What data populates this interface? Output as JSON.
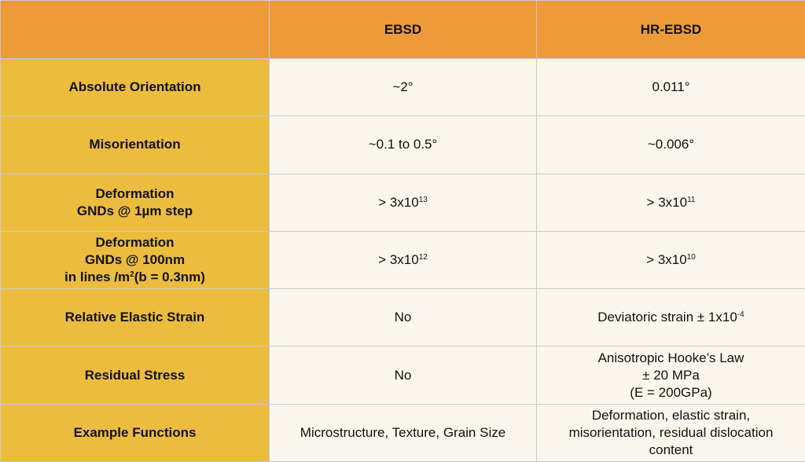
{
  "header": {
    "corner": "",
    "col1": "EBSD",
    "col2": "HR-EBSD"
  },
  "rows": [
    {
      "label_lines": [
        "Absolute Orientation"
      ],
      "ebsd": {
        "pre": "~2°",
        "sup": "",
        "post": ""
      },
      "hrebsd_lines": [
        {
          "pre": "0.011°",
          "sup": "",
          "post": ""
        }
      ]
    },
    {
      "label_lines": [
        "Misorientation"
      ],
      "ebsd": {
        "pre": "~0.1 to 0.5°",
        "sup": "",
        "post": ""
      },
      "hrebsd_lines": [
        {
          "pre": "~0.006°",
          "sup": "",
          "post": ""
        }
      ]
    },
    {
      "label_lines": [
        "Deformation",
        "GNDs @ 1µm step"
      ],
      "ebsd": {
        "pre": "> 3x10",
        "sup": "13",
        "post": ""
      },
      "hrebsd_lines": [
        {
          "pre": "> 3x10",
          "sup": "11",
          "post": ""
        }
      ]
    },
    {
      "label_lines": [
        "Deformation",
        "GNDs @ 100nm"
      ],
      "label_sup_line": {
        "pre": "in lines /m",
        "sup": "2",
        "post": "(b = 0.3nm)"
      },
      "ebsd": {
        "pre": "> 3x10",
        "sup": "12",
        "post": ""
      },
      "hrebsd_lines": [
        {
          "pre": "> 3x10",
          "sup": "10",
          "post": ""
        }
      ]
    },
    {
      "label_lines": [
        "Relative Elastic Strain"
      ],
      "ebsd": {
        "pre": "No",
        "sup": "",
        "post": ""
      },
      "hrebsd_lines": [
        {
          "pre": "Deviatoric strain ± 1x10",
          "sup": "-4",
          "post": ""
        }
      ]
    },
    {
      "label_lines": [
        "Residual Stress"
      ],
      "ebsd": {
        "pre": "No",
        "sup": "",
        "post": ""
      },
      "hrebsd_lines": [
        {
          "pre": "Anisotropic Hooke’s Law",
          "sup": "",
          "post": ""
        },
        {
          "pre": "± 20 MPa",
          "sup": "",
          "post": ""
        },
        {
          "pre": "(E = 200GPa)",
          "sup": "",
          "post": ""
        }
      ]
    },
    {
      "label_lines": [
        "Example Functions"
      ],
      "ebsd": {
        "pre": "Microstructure, Texture, Grain Size",
        "sup": "",
        "post": ""
      },
      "hrebsd_lines": [
        {
          "pre": "Deformation, elastic strain,",
          "sup": "",
          "post": ""
        },
        {
          "pre": "misorientation, residual dislocation",
          "sup": "",
          "post": ""
        },
        {
          "pre": "content",
          "sup": "",
          "post": ""
        }
      ]
    }
  ],
  "colors": {
    "header_bg": "#ee9a38",
    "row_label_bg": "#ecbc3f",
    "cell_bg": "#fbf7ee",
    "border": "#c9c9c9"
  }
}
